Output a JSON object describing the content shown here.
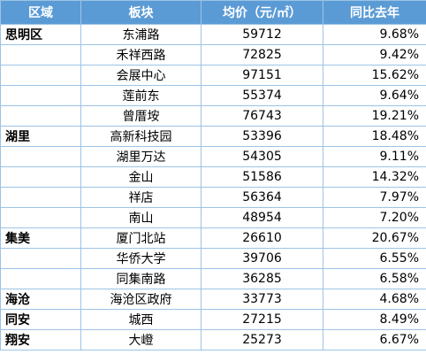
{
  "colors": {
    "header_bg": "#5b9bd5",
    "header_text": "#ffffff",
    "border": "#9dc3e6"
  },
  "table": {
    "headers": [
      "区域",
      "板块",
      "均价（元/㎡）",
      "同比去年"
    ],
    "rows": [
      {
        "district": "思明区",
        "block": "东浦路",
        "price": "59712",
        "yoy": "9.68%"
      },
      {
        "district": "",
        "block": "禾祥西路",
        "price": "72825",
        "yoy": "9.42%"
      },
      {
        "district": "",
        "block": "会展中心",
        "price": "97151",
        "yoy": "15.62%"
      },
      {
        "district": "",
        "block": "莲前东",
        "price": "55374",
        "yoy": "9.64%"
      },
      {
        "district": "",
        "block": "曾厝垵",
        "price": "76743",
        "yoy": "19.21%"
      },
      {
        "district": "湖里",
        "block": "高新科技园",
        "price": "53396",
        "yoy": "18.48%"
      },
      {
        "district": "",
        "block": "湖里万达",
        "price": "54305",
        "yoy": "9.11%"
      },
      {
        "district": "",
        "block": "金山",
        "price": "51586",
        "yoy": "14.32%"
      },
      {
        "district": "",
        "block": "祥店",
        "price": "56364",
        "yoy": "7.97%"
      },
      {
        "district": "",
        "block": "南山",
        "price": "48954",
        "yoy": "7.20%"
      },
      {
        "district": "集美",
        "block": "厦门北站",
        "price": "26610",
        "yoy": "20.67%"
      },
      {
        "district": "",
        "block": "华侨大学",
        "price": "39706",
        "yoy": "6.55%"
      },
      {
        "district": "",
        "block": "同集南路",
        "price": "36285",
        "yoy": "6.58%"
      },
      {
        "district": "海沧",
        "block": "海沧区政府",
        "price": "33773",
        "yoy": "4.68%"
      },
      {
        "district": "同安",
        "block": "城西",
        "price": "27215",
        "yoy": "8.49%"
      },
      {
        "district": "翔安",
        "block": "大嶝",
        "price": "25273",
        "yoy": "6.67%"
      }
    ]
  }
}
